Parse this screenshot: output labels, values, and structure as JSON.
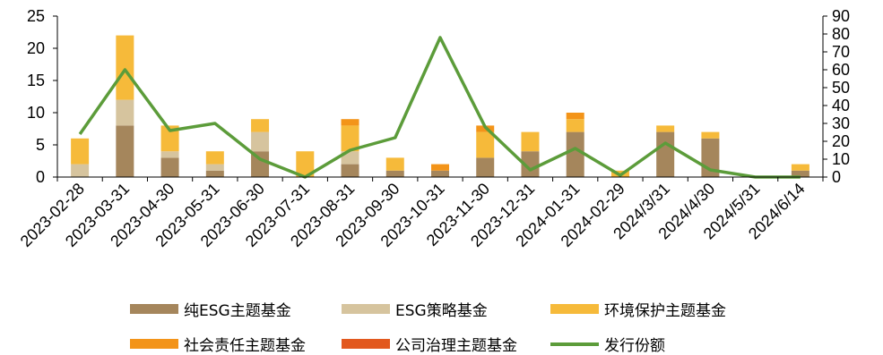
{
  "chart_data": {
    "type": "bar",
    "stacked": true,
    "categories": [
      "2023-02-28",
      "2023-03-31",
      "2023-04-30",
      "2023-05-31",
      "2023-06-30",
      "2023-07-31",
      "2023-08-31",
      "2023-09-30",
      "2023-10-31",
      "2023-11-30",
      "2023-12-31",
      "2024-01-31",
      "2024-02-29",
      "2024/3/31",
      "2024/4/30",
      "2024/5/31",
      "2024/6/14"
    ],
    "series": [
      {
        "name": "纯ESG主题基金",
        "color": "#A5865C",
        "values": [
          0,
          8,
          3,
          1,
          4,
          0,
          2,
          1,
          1,
          3,
          4,
          7,
          0,
          7,
          6,
          0,
          1
        ]
      },
      {
        "name": "ESG策略基金",
        "color": "#D6C49E",
        "values": [
          2,
          4,
          1,
          1,
          3,
          0,
          2,
          0,
          0,
          0,
          0,
          0,
          0,
          0,
          0,
          0,
          0
        ]
      },
      {
        "name": "环境保护主题基金",
        "color": "#F6BA3A",
        "values": [
          4,
          10,
          4,
          2,
          2,
          4,
          4,
          2,
          0,
          4,
          3,
          2,
          1,
          1,
          1,
          0,
          1
        ]
      },
      {
        "name": "社会责任主题基金",
        "color": "#F39419",
        "values": [
          0,
          0,
          0,
          0,
          0,
          0,
          1,
          0,
          1,
          1,
          0,
          1,
          0,
          0,
          0,
          0,
          0
        ]
      },
      {
        "name": "公司治理主题基金",
        "color": "#E2581E",
        "values": [
          0,
          0,
          0,
          0,
          0,
          0,
          0,
          0,
          0,
          0,
          0,
          0,
          0,
          0,
          0,
          0,
          0
        ]
      }
    ],
    "line_series": {
      "name": "发行份额",
      "color": "#5C9C3A",
      "axis": "right",
      "values": [
        24,
        60,
        26,
        30,
        10,
        0,
        15,
        22,
        78,
        28,
        4,
        16,
        1,
        19,
        4,
        0,
        0
      ]
    },
    "ylim_left": [
      0,
      25
    ],
    "yticks_left": [
      0,
      5,
      10,
      15,
      20,
      25
    ],
    "ylim_right": [
      0,
      90
    ],
    "yticks_right": [
      0,
      10,
      20,
      30,
      40,
      50,
      60,
      70,
      80,
      90
    ],
    "legend_position": "bottom",
    "grid": false
  }
}
